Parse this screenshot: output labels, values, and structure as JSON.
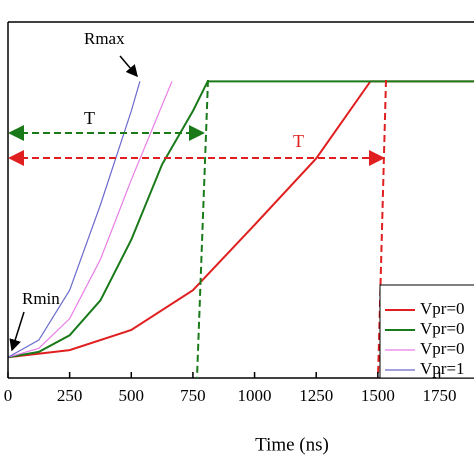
{
  "chart_data": {
    "type": "line",
    "xlabel": "Time (ns)",
    "xlim": [
      0,
      1890
    ],
    "ylim": [
      0,
      6
    ],
    "xticks": [
      0,
      250,
      500,
      750,
      1000,
      1250,
      1500,
      1750
    ],
    "series": [
      {
        "name": "Vpr=0",
        "color": "#e02020",
        "x": [
          0,
          250,
          500,
          750,
          1000,
          1250,
          1470,
          1890
        ],
        "values": [
          0.35,
          0.47,
          0.81,
          1.48,
          2.58,
          3.7,
          5.0,
          5.0
        ]
      },
      {
        "name": "Vpr=0",
        "color": "#1a7a1a",
        "x": [
          0,
          125,
          250,
          375,
          500,
          625,
          750,
          810,
          1890
        ],
        "values": [
          0.35,
          0.44,
          0.72,
          1.31,
          2.33,
          3.6,
          4.5,
          5.0,
          5.0
        ]
      },
      {
        "name": "Vpr=0",
        "color": "#e87ee8",
        "x": [
          0,
          125,
          250,
          375,
          500,
          665
        ],
        "values": [
          0.35,
          0.5,
          1.0,
          2.0,
          3.34,
          5.0
        ]
      },
      {
        "name": "Vpr=1",
        "color": "#6b6bcc",
        "x": [
          0,
          125,
          250,
          375,
          500,
          535
        ],
        "values": [
          0.35,
          0.64,
          1.48,
          2.92,
          4.5,
          5.0
        ]
      }
    ],
    "annotations": [
      "Rmax",
      "Rmin",
      "T",
      "T"
    ]
  }
}
